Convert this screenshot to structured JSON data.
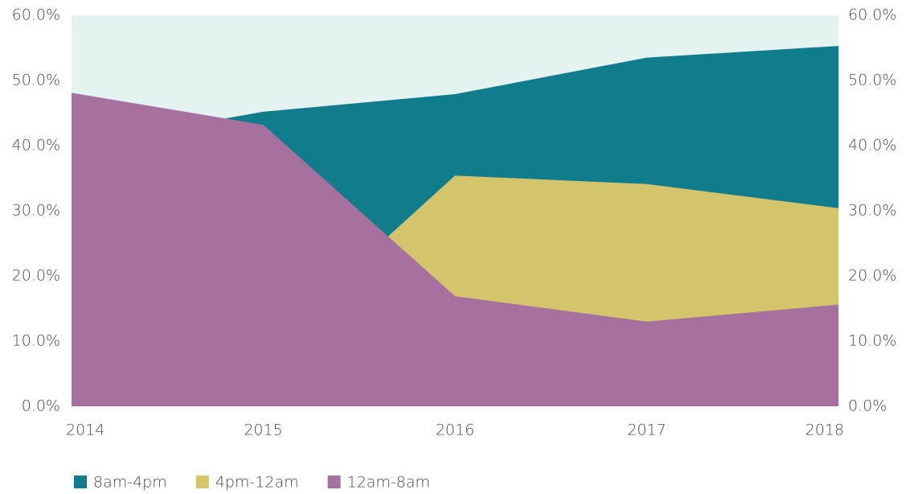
{
  "chart_data": {
    "type": "area",
    "categories": [
      "2014",
      "2015",
      "2016",
      "2017",
      "2018"
    ],
    "series": [
      {
        "name": "8am-4pm",
        "color": "#107c8c",
        "values": [
          40.0,
          45.2,
          47.9,
          53.5,
          55.3
        ]
      },
      {
        "name": "4pm-12am",
        "color": "#d4c56c",
        "values": [
          5.0,
          8.7,
          35.4,
          34.1,
          30.4
        ]
      },
      {
        "name": "12am-8am",
        "color": "#a6709f",
        "values": [
          48.1,
          43.2,
          16.9,
          13.0,
          15.6
        ]
      }
    ],
    "ylim": [
      0,
      60
    ],
    "yticks": [
      {
        "value": 0,
        "label": "0.0%"
      },
      {
        "value": 10,
        "label": "10.0%"
      },
      {
        "value": 20,
        "label": "20.0%"
      },
      {
        "value": 30,
        "label": "30.0%"
      },
      {
        "value": 40,
        "label": "40.0%"
      },
      {
        "value": 50,
        "label": "50.0%"
      },
      {
        "value": 60,
        "label": "60.0%"
      }
    ],
    "y2lim": [
      0,
      60
    ],
    "y2ticks": [
      {
        "value": 0,
        "label": "0.0%"
      },
      {
        "value": 10,
        "label": "10.0%"
      },
      {
        "value": 20,
        "label": "20.0%"
      },
      {
        "value": 30,
        "label": "30.0%"
      },
      {
        "value": 40,
        "label": "40.0%"
      },
      {
        "value": 50,
        "label": "50.0%"
      },
      {
        "value": 60,
        "label": "60.0%"
      }
    ],
    "legend": "bottom-left"
  }
}
